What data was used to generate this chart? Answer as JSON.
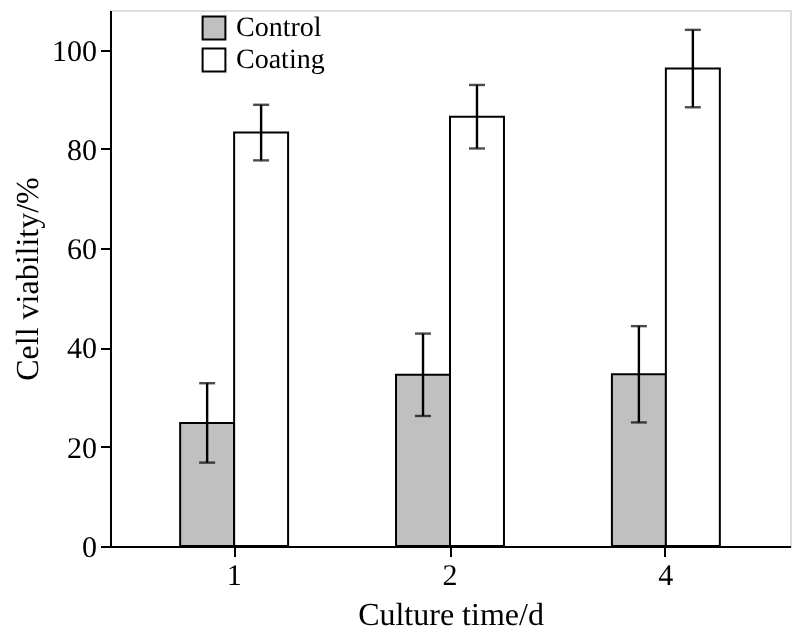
{
  "chart_data": {
    "type": "bar",
    "xlabel": "Culture time/d",
    "ylabel": "Cell viability/%",
    "categories": [
      "1",
      "2",
      "4"
    ],
    "series": [
      {
        "name": "Control",
        "color": "#c0c0c0",
        "values": [
          24.8,
          34.5,
          34.6
        ],
        "errors": [
          8,
          8.3,
          9.7
        ]
      },
      {
        "name": "Coating",
        "color": "#ffffff",
        "values": [
          83.3,
          86.5,
          96.2
        ],
        "errors": [
          5.6,
          6.4,
          7.8
        ]
      }
    ],
    "ylim": [
      0,
      108
    ],
    "yticks": [
      0,
      20,
      40,
      60,
      80,
      100
    ],
    "grid": false,
    "legend": "top left"
  }
}
